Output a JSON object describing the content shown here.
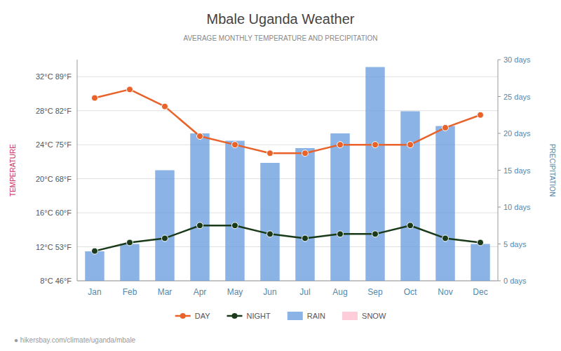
{
  "chart_data": {
    "type": "line",
    "title": "Mbale Uganda Weather",
    "subtitle": "AVERAGE MONTHLY TEMPERATURE AND PRECIPITATION",
    "ylabel": "TEMPERATURE",
    "y2label": "PRECIPITATION",
    "annotations": [
      "● hikersbay.com/climate/uganda/mbale"
    ],
    "categories": [
      "Jan",
      "Feb",
      "Mar",
      "Apr",
      "May",
      "Jun",
      "Jul",
      "Aug",
      "Sep",
      "Oct",
      "Nov",
      "Dec"
    ],
    "series": [
      {
        "name": "DAY",
        "type": "line",
        "marker": "circle",
        "color": "#e8622a",
        "values": [
          29.5,
          30.5,
          28.5,
          25.0,
          24.0,
          23.0,
          23.0,
          24.0,
          24.0,
          24.0,
          26.0,
          27.5
        ]
      },
      {
        "name": "NIGHT",
        "type": "line",
        "marker": "circle",
        "color": "#1a3a1a",
        "values": [
          11.5,
          12.5,
          13.0,
          14.5,
          14.5,
          13.5,
          13.0,
          13.5,
          13.5,
          14.5,
          13.0,
          12.5
        ]
      },
      {
        "name": "RAIN",
        "type": "bar",
        "axis": "y2",
        "color": "#6699dd",
        "values": [
          4,
          5,
          15,
          20,
          19,
          16,
          18,
          20,
          29,
          23,
          21,
          5
        ]
      },
      {
        "name": "SNOW",
        "type": "bar",
        "axis": "y2",
        "color": "#ffbbcc",
        "values": [
          null,
          null,
          null,
          null,
          null,
          null,
          null,
          null,
          null,
          null,
          null,
          null
        ]
      }
    ],
    "ylim": [
      8,
      34
    ],
    "yticks": [
      {
        "value": 8,
        "label": "8°C 46°F"
      },
      {
        "value": 12,
        "label": "12°C 53°F"
      },
      {
        "value": 16,
        "label": "16°C 60°F"
      },
      {
        "value": 20,
        "label": "20°C 68°F"
      },
      {
        "value": 24,
        "label": "24°C 75°F"
      },
      {
        "value": 28,
        "label": "28°C 82°F"
      },
      {
        "value": 32,
        "label": "32°C 89°F"
      }
    ],
    "y2lim": [
      0,
      30
    ],
    "y2ticks": [
      {
        "value": 0,
        "label": "0 days"
      },
      {
        "value": 5,
        "label": "5 days"
      },
      {
        "value": 10,
        "label": "10 days"
      },
      {
        "value": 15,
        "label": "15 days"
      },
      {
        "value": 20,
        "label": "20 days"
      },
      {
        "value": 25,
        "label": "25 days"
      },
      {
        "value": 30,
        "label": "30 days"
      }
    ],
    "grid": true
  }
}
